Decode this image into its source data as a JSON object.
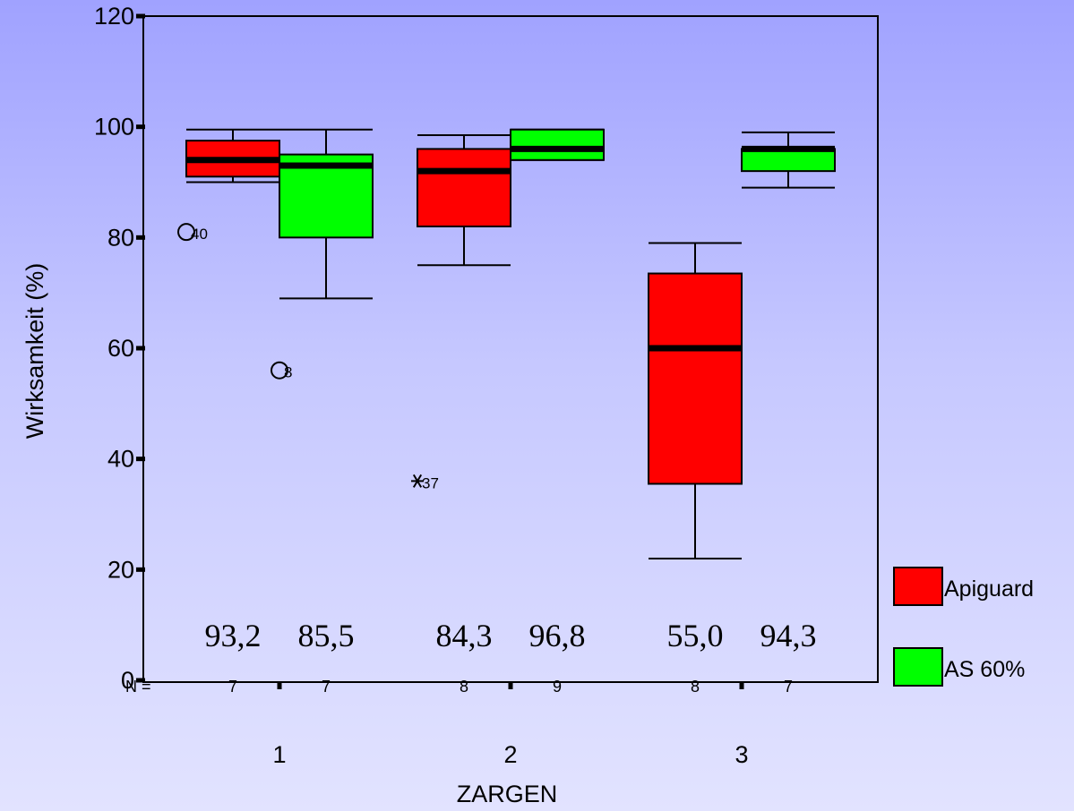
{
  "chart_data": {
    "type": "boxplot",
    "ylabel": "Wirksamkeit (%)",
    "xlabel": "ZARGEN",
    "ylim": [
      0,
      120
    ],
    "yticks": [
      0,
      20,
      40,
      60,
      80,
      100,
      120
    ],
    "categories": [
      "1",
      "2",
      "3"
    ],
    "n_label": "N =",
    "legend_position": "right",
    "series": [
      {
        "name": "Apiguard",
        "color": "#ff0000"
      },
      {
        "name": "AS 60%",
        "color": "#00ff00"
      }
    ],
    "boxes": [
      {
        "category": "1",
        "series": "Apiguard",
        "n": "7",
        "min": 90,
        "q1": 91,
        "median": 94,
        "q3": 97.5,
        "max": 99.5,
        "mean_label": "93,2",
        "outliers": [
          {
            "value": 81,
            "label": "40",
            "symbol": "circle"
          }
        ]
      },
      {
        "category": "1",
        "series": "AS 60%",
        "n": "7",
        "min": 69,
        "q1": 80,
        "median": 93,
        "q3": 95,
        "max": 99.5,
        "mean_label": "85,5",
        "outliers": [
          {
            "value": 56,
            "label": "8",
            "symbol": "circle"
          }
        ]
      },
      {
        "category": "2",
        "series": "Apiguard",
        "n": "8",
        "min": 75,
        "q1": 82,
        "median": 92,
        "q3": 96,
        "max": 98.5,
        "mean_label": "84,3",
        "outliers": [
          {
            "value": 36,
            "label": "37",
            "symbol": "star"
          }
        ]
      },
      {
        "category": "2",
        "series": "AS 60%",
        "n": "9",
        "min": 94,
        "q1": 94,
        "median": 96,
        "q3": 99.5,
        "max": 99.5,
        "mean_label": "96,8",
        "outliers": []
      },
      {
        "category": "3",
        "series": "Apiguard",
        "n": "8",
        "min": 22,
        "q1": 35.5,
        "median": 60,
        "q3": 73.5,
        "max": 79,
        "mean_label": "55,0",
        "outliers": []
      },
      {
        "category": "3",
        "series": "AS 60%",
        "n": "7",
        "min": 89,
        "q1": 92,
        "median": 96,
        "q3": 96,
        "max": 99,
        "mean_label": "94,3",
        "outliers": []
      }
    ]
  }
}
